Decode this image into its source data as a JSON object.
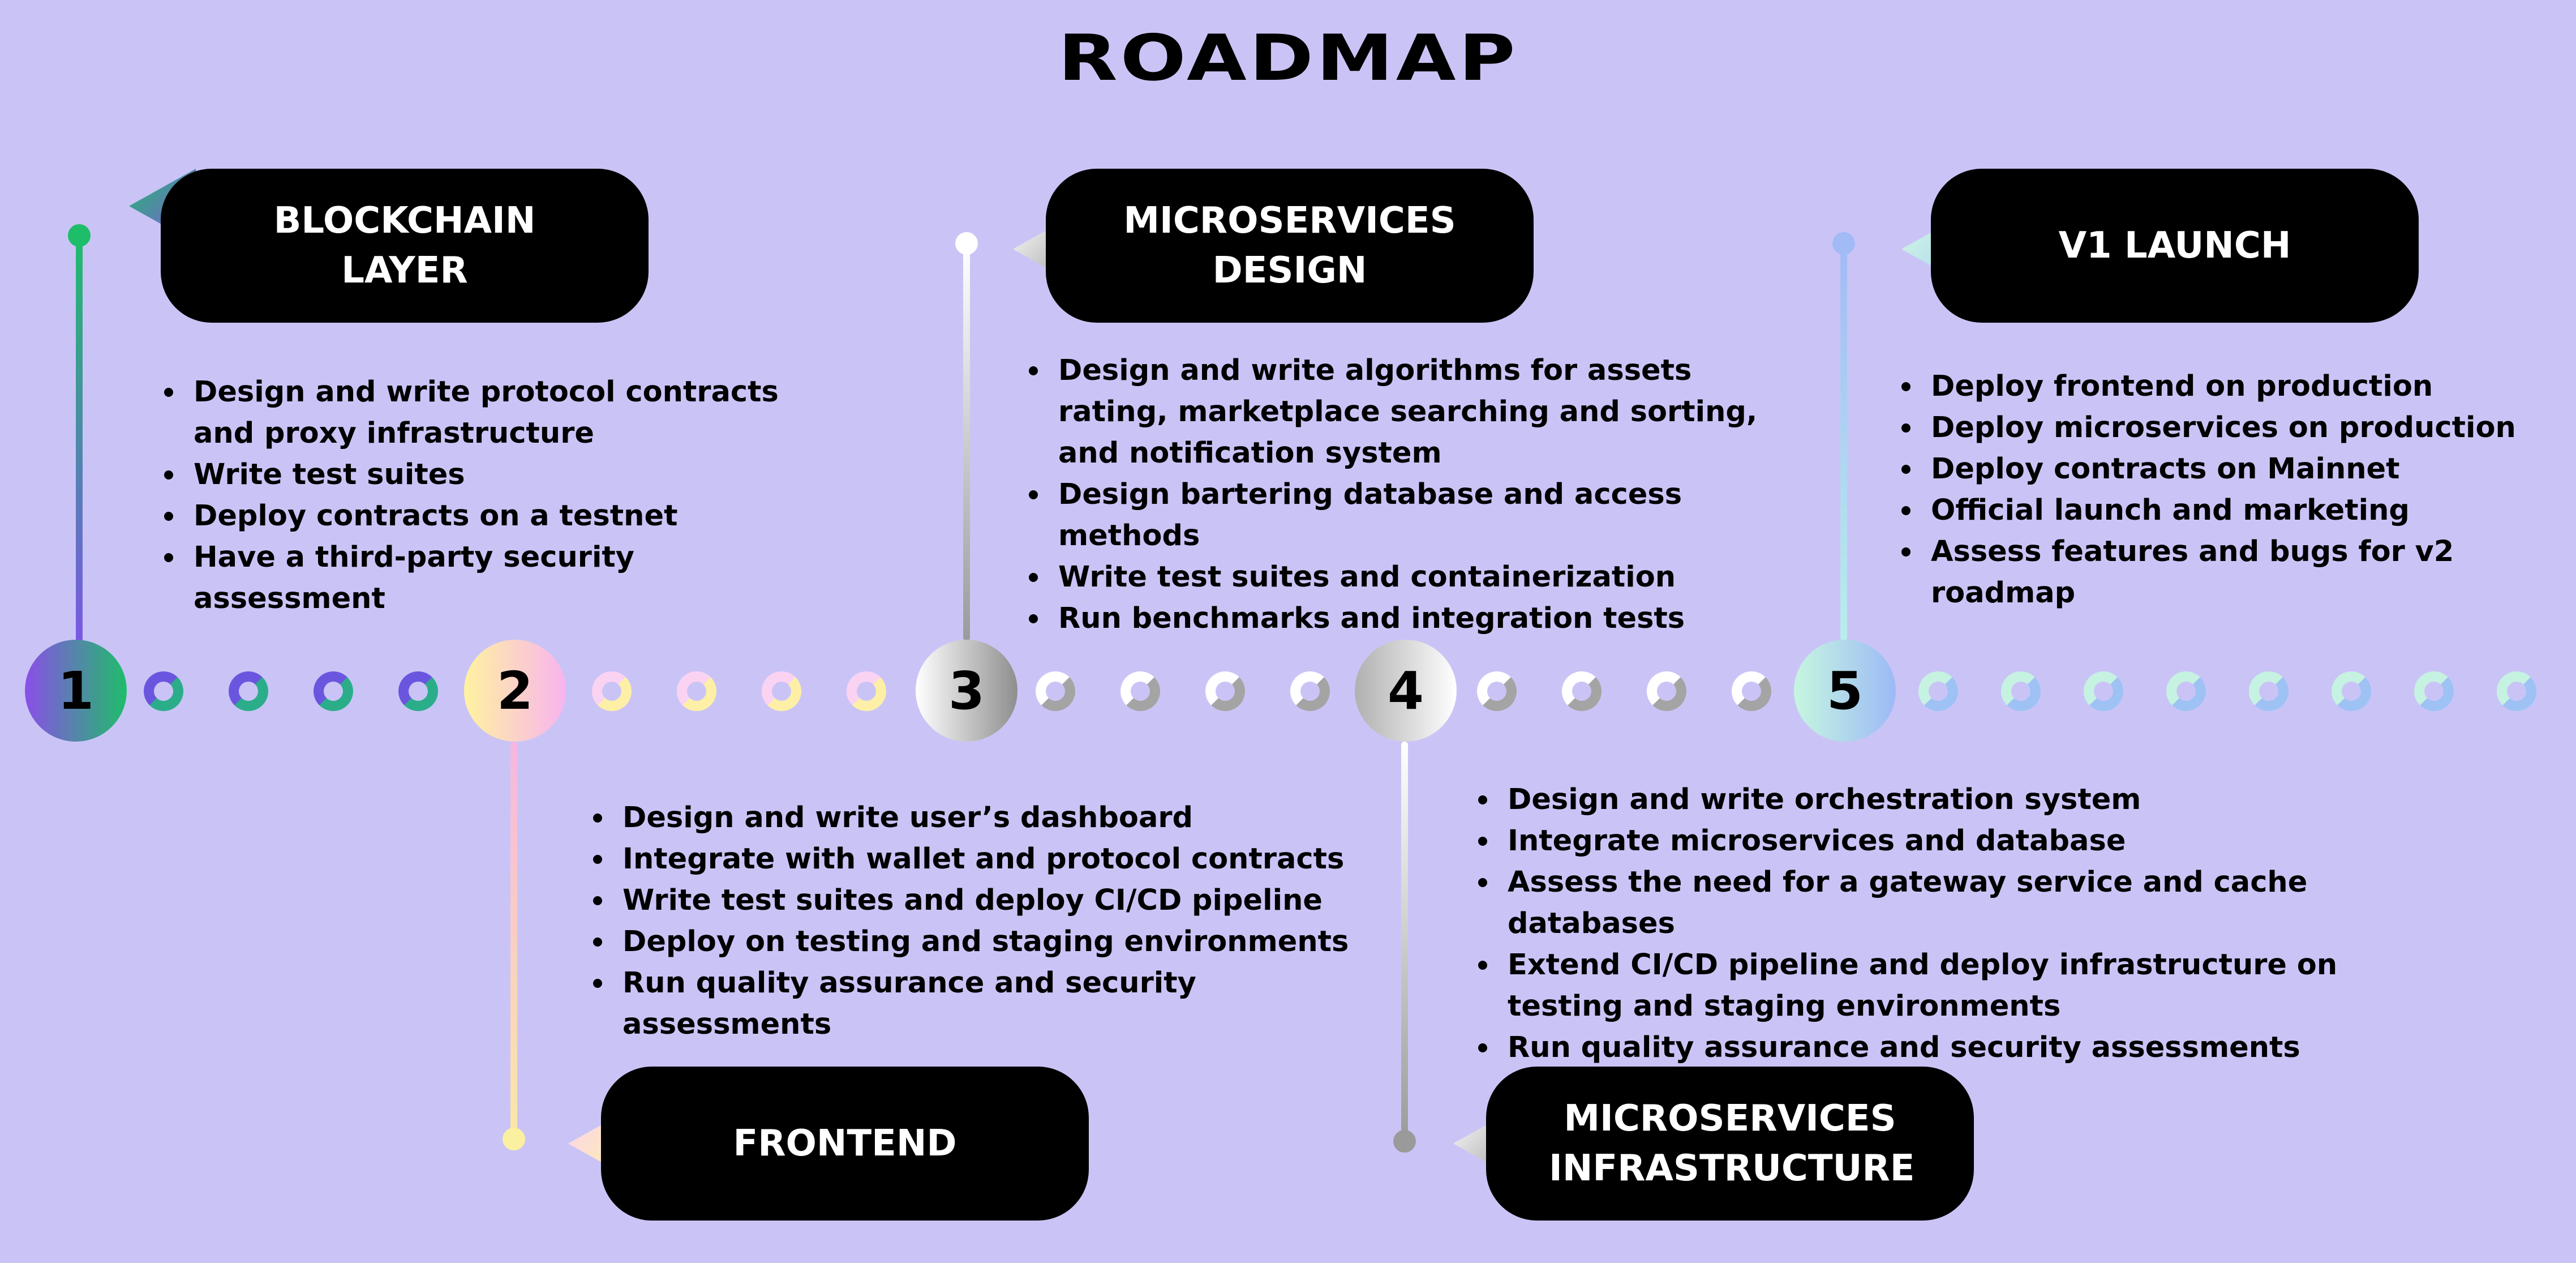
{
  "title": "ROADMAP",
  "phases": [
    {
      "number": "1",
      "heading": "BLOCKCHAIN LAYER",
      "items": [
        "Design and write protocol contracts and proxy infrastructure",
        "Write test suites",
        "Deploy contracts on a testnet",
        "Have a third-party security assessment"
      ]
    },
    {
      "number": "2",
      "heading": "FRONTEND",
      "items": [
        "Design and write user’s dashboard",
        "Integrate with wallet and protocol contracts",
        "Write test suites and deploy CI/CD pipeline",
        "Deploy on testing and staging environments",
        "Run quality assurance and security assessments"
      ]
    },
    {
      "number": "3",
      "heading": "MICROSERVICES DESIGN",
      "items": [
        "Design and write algorithms for assets rating, marketplace searching and sorting, and notification system",
        "Design bartering database and access methods",
        "Write test suites and containerization",
        "Run benchmarks and integration tests"
      ]
    },
    {
      "number": "4",
      "heading": "MICROSERVICES INFRASTRUCTURE",
      "items": [
        "Design and write orchestration system",
        "Integrate microservices and database",
        "Assess the need for a gateway service and cache databases",
        "Extend CI/CD pipeline and deploy infrastructure on testing and staging environments",
        "Run quality assurance and security assessments"
      ]
    },
    {
      "number": "5",
      "heading": "V1 LAUNCH",
      "items": [
        "Deploy frontend on production",
        "Deploy microservices on production",
        "Deploy contracts on Mainnet",
        "Official launch and marketing",
        "Assess features and bugs for v2 roadmap"
      ]
    }
  ]
}
